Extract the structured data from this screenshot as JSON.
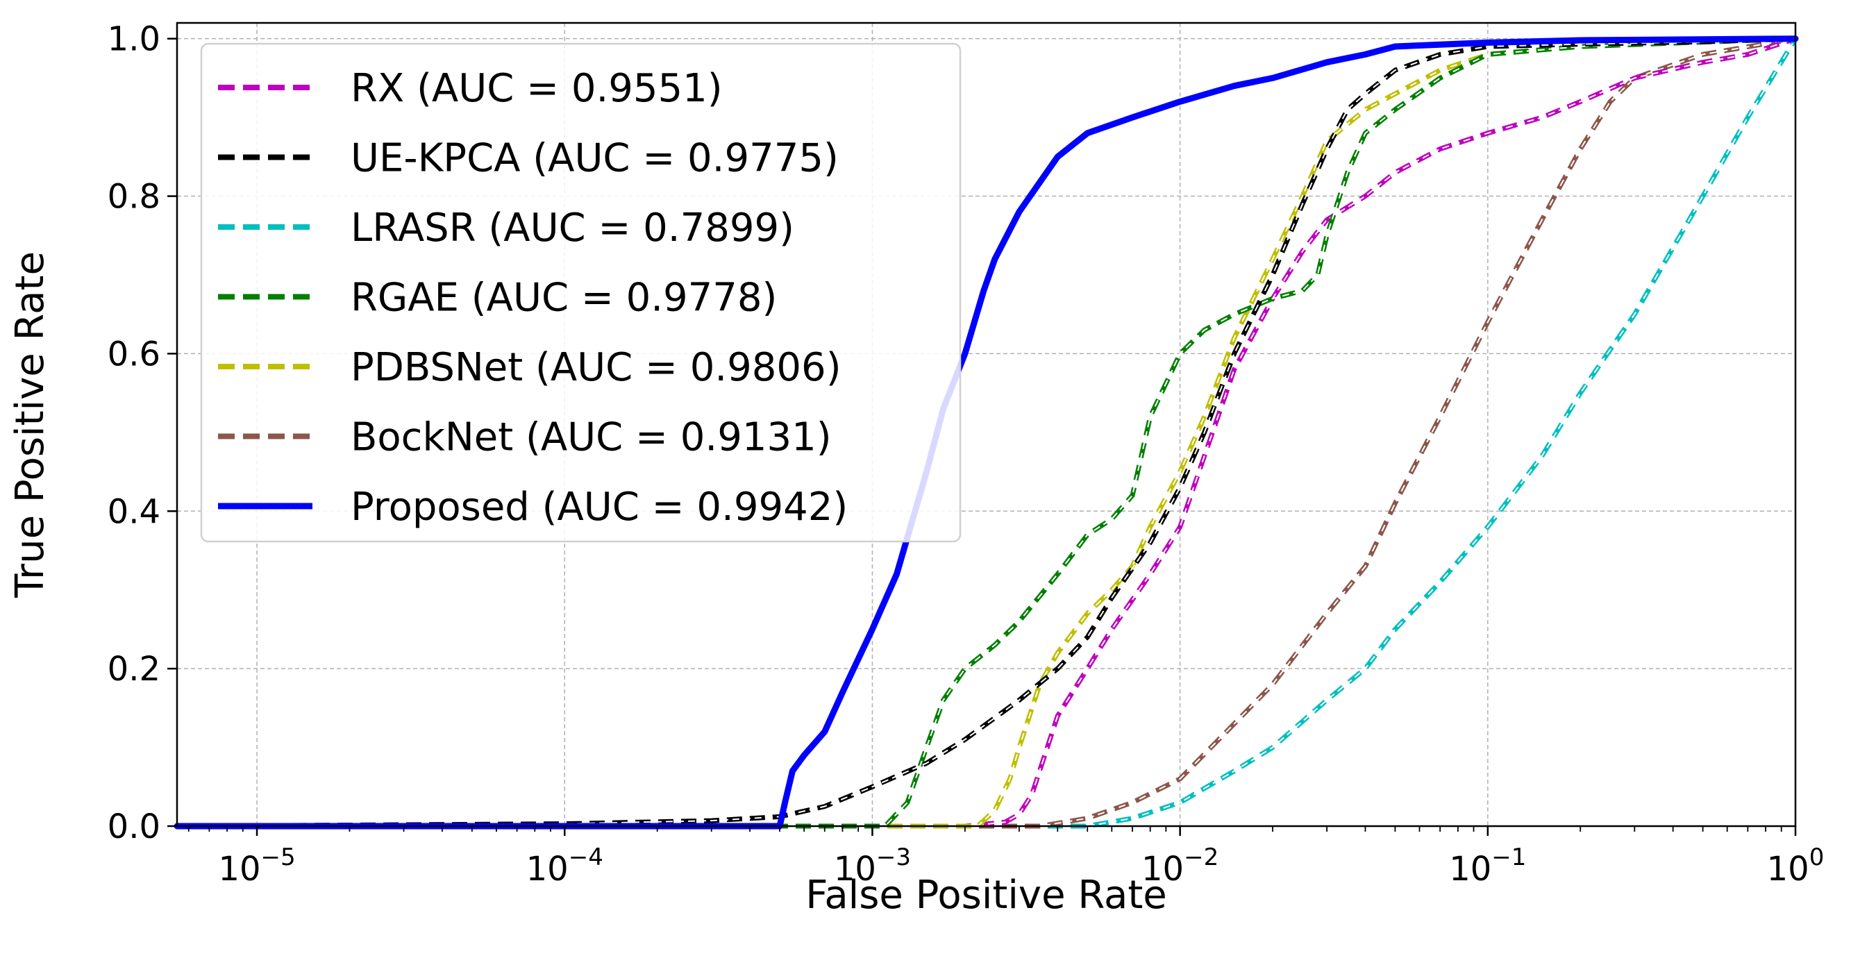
{
  "chart_data": {
    "type": "line",
    "title": "",
    "xlabel": "False Positive Rate",
    "ylabel": "True Positive Rate",
    "xscale": "log",
    "xlim": [
      5.5e-06,
      1
    ],
    "ylim": [
      0.0,
      1.02
    ],
    "grid": true,
    "legend_position": "top-left",
    "x_ticks": [
      {
        "value": 1e-05,
        "base": "10",
        "exp": "−5"
      },
      {
        "value": 0.0001,
        "base": "10",
        "exp": "−4"
      },
      {
        "value": 0.001,
        "base": "10",
        "exp": "−3"
      },
      {
        "value": 0.01,
        "base": "10",
        "exp": "−2"
      },
      {
        "value": 0.1,
        "base": "10",
        "exp": "−1"
      },
      {
        "value": 1,
        "base": "10",
        "exp": "0"
      }
    ],
    "y_ticks": [
      {
        "value": 0.0,
        "label": "0.0"
      },
      {
        "value": 0.2,
        "label": "0.2"
      },
      {
        "value": 0.4,
        "label": "0.4"
      },
      {
        "value": 0.6,
        "label": "0.6"
      },
      {
        "value": 0.8,
        "label": "0.8"
      },
      {
        "value": 1.0,
        "label": "1.0"
      }
    ],
    "series": [
      {
        "name": "RX (AUC = 0.9551)",
        "color": "#bf00bf",
        "style": "dashed",
        "id": "rx",
        "x": [
          5.5e-06,
          0.002,
          0.0027,
          0.003,
          0.0033,
          0.004,
          0.005,
          0.006,
          0.008,
          0.01,
          0.012,
          0.015,
          0.02,
          0.025,
          0.03,
          0.04,
          0.05,
          0.07,
          0.1,
          0.15,
          0.2,
          0.3,
          0.5,
          0.7,
          1.0
        ],
        "y": [
          0.0,
          0.0,
          0.005,
          0.015,
          0.04,
          0.14,
          0.2,
          0.25,
          0.32,
          0.38,
          0.47,
          0.58,
          0.67,
          0.73,
          0.77,
          0.8,
          0.83,
          0.86,
          0.88,
          0.9,
          0.92,
          0.95,
          0.97,
          0.98,
          1.0
        ]
      },
      {
        "name": "UE-KPCA (AUC = 0.9775)",
        "color": "#000000",
        "style": "dashed",
        "id": "ue-kpca",
        "x": [
          5.5e-06,
          0.0001,
          0.0003,
          0.0005,
          0.0007,
          0.001,
          0.0015,
          0.002,
          0.003,
          0.004,
          0.005,
          0.006,
          0.008,
          0.01,
          0.012,
          0.015,
          0.02,
          0.025,
          0.03,
          0.035,
          0.04,
          0.05,
          0.07,
          0.1,
          0.2,
          0.5,
          1.0
        ],
        "y": [
          0.0,
          0.003,
          0.007,
          0.012,
          0.025,
          0.05,
          0.08,
          0.11,
          0.16,
          0.2,
          0.24,
          0.29,
          0.36,
          0.43,
          0.5,
          0.6,
          0.7,
          0.79,
          0.86,
          0.91,
          0.93,
          0.96,
          0.98,
          0.99,
          0.993,
          0.996,
          1.0
        ]
      },
      {
        "name": "LRASR (AUC = 0.7899)",
        "color": "#00bfbf",
        "style": "dashed",
        "id": "lrasr",
        "x": [
          5.5e-06,
          0.005,
          0.007,
          0.01,
          0.015,
          0.02,
          0.03,
          0.04,
          0.05,
          0.07,
          0.1,
          0.15,
          0.2,
          0.3,
          0.5,
          0.7,
          1.0
        ],
        "y": [
          0.0,
          0.0,
          0.01,
          0.03,
          0.07,
          0.1,
          0.16,
          0.2,
          0.25,
          0.31,
          0.38,
          0.47,
          0.55,
          0.65,
          0.8,
          0.9,
          1.0
        ]
      },
      {
        "name": "RGAE (AUC = 0.9778)",
        "color": "#007f00",
        "style": "dashed",
        "id": "rgae",
        "x": [
          5.5e-06,
          0.0011,
          0.0013,
          0.0015,
          0.0017,
          0.002,
          0.0025,
          0.003,
          0.004,
          0.005,
          0.006,
          0.007,
          0.008,
          0.01,
          0.012,
          0.015,
          0.02,
          0.025,
          0.028,
          0.03,
          0.035,
          0.04,
          0.05,
          0.07,
          0.1,
          0.2,
          1.0
        ],
        "y": [
          0.0,
          0.0,
          0.03,
          0.1,
          0.16,
          0.2,
          0.23,
          0.26,
          0.32,
          0.37,
          0.39,
          0.42,
          0.52,
          0.6,
          0.63,
          0.65,
          0.67,
          0.68,
          0.7,
          0.75,
          0.83,
          0.88,
          0.91,
          0.95,
          0.98,
          0.99,
          1.0
        ]
      },
      {
        "name": "PDBSNet (AUC = 0.9806)",
        "color": "#bfbf00",
        "style": "dashed",
        "id": "pdbsnet",
        "x": [
          5.5e-06,
          0.0022,
          0.0025,
          0.0028,
          0.003,
          0.0035,
          0.004,
          0.005,
          0.006,
          0.007,
          0.008,
          0.01,
          0.012,
          0.015,
          0.02,
          0.025,
          0.03,
          0.04,
          0.05,
          0.07,
          0.1,
          0.2,
          1.0
        ],
        "y": [
          0.0,
          0.0,
          0.02,
          0.06,
          0.1,
          0.18,
          0.22,
          0.27,
          0.3,
          0.33,
          0.38,
          0.45,
          0.52,
          0.62,
          0.72,
          0.8,
          0.87,
          0.91,
          0.93,
          0.96,
          0.98,
          0.99,
          1.0
        ]
      },
      {
        "name": "BockNet (AUC = 0.9131)",
        "color": "#8c564b",
        "style": "dashed",
        "id": "bocknet",
        "x": [
          5.5e-06,
          0.0035,
          0.005,
          0.007,
          0.01,
          0.015,
          0.02,
          0.03,
          0.04,
          0.05,
          0.07,
          0.1,
          0.15,
          0.2,
          0.25,
          0.3,
          0.5,
          1.0
        ],
        "y": [
          0.0,
          0.0,
          0.01,
          0.03,
          0.06,
          0.13,
          0.18,
          0.27,
          0.33,
          0.41,
          0.52,
          0.64,
          0.77,
          0.86,
          0.92,
          0.95,
          0.98,
          1.0
        ]
      },
      {
        "name": "Proposed (AUC = 0.9942)",
        "color": "#0000ff",
        "style": "solid",
        "id": "proposed",
        "x": [
          5.5e-06,
          0.0005,
          0.00052,
          0.00055,
          0.0006,
          0.0007,
          0.0008,
          0.001,
          0.0012,
          0.0015,
          0.0017,
          0.002,
          0.0023,
          0.0025,
          0.003,
          0.004,
          0.005,
          0.007,
          0.01,
          0.015,
          0.02,
          0.03,
          0.04,
          0.05,
          0.1,
          0.2,
          1.0
        ],
        "y": [
          0.0,
          0.0,
          0.03,
          0.07,
          0.09,
          0.12,
          0.17,
          0.25,
          0.32,
          0.45,
          0.53,
          0.6,
          0.68,
          0.72,
          0.78,
          0.85,
          0.88,
          0.9,
          0.92,
          0.94,
          0.95,
          0.97,
          0.98,
          0.99,
          0.995,
          0.998,
          1.0
        ]
      }
    ]
  }
}
